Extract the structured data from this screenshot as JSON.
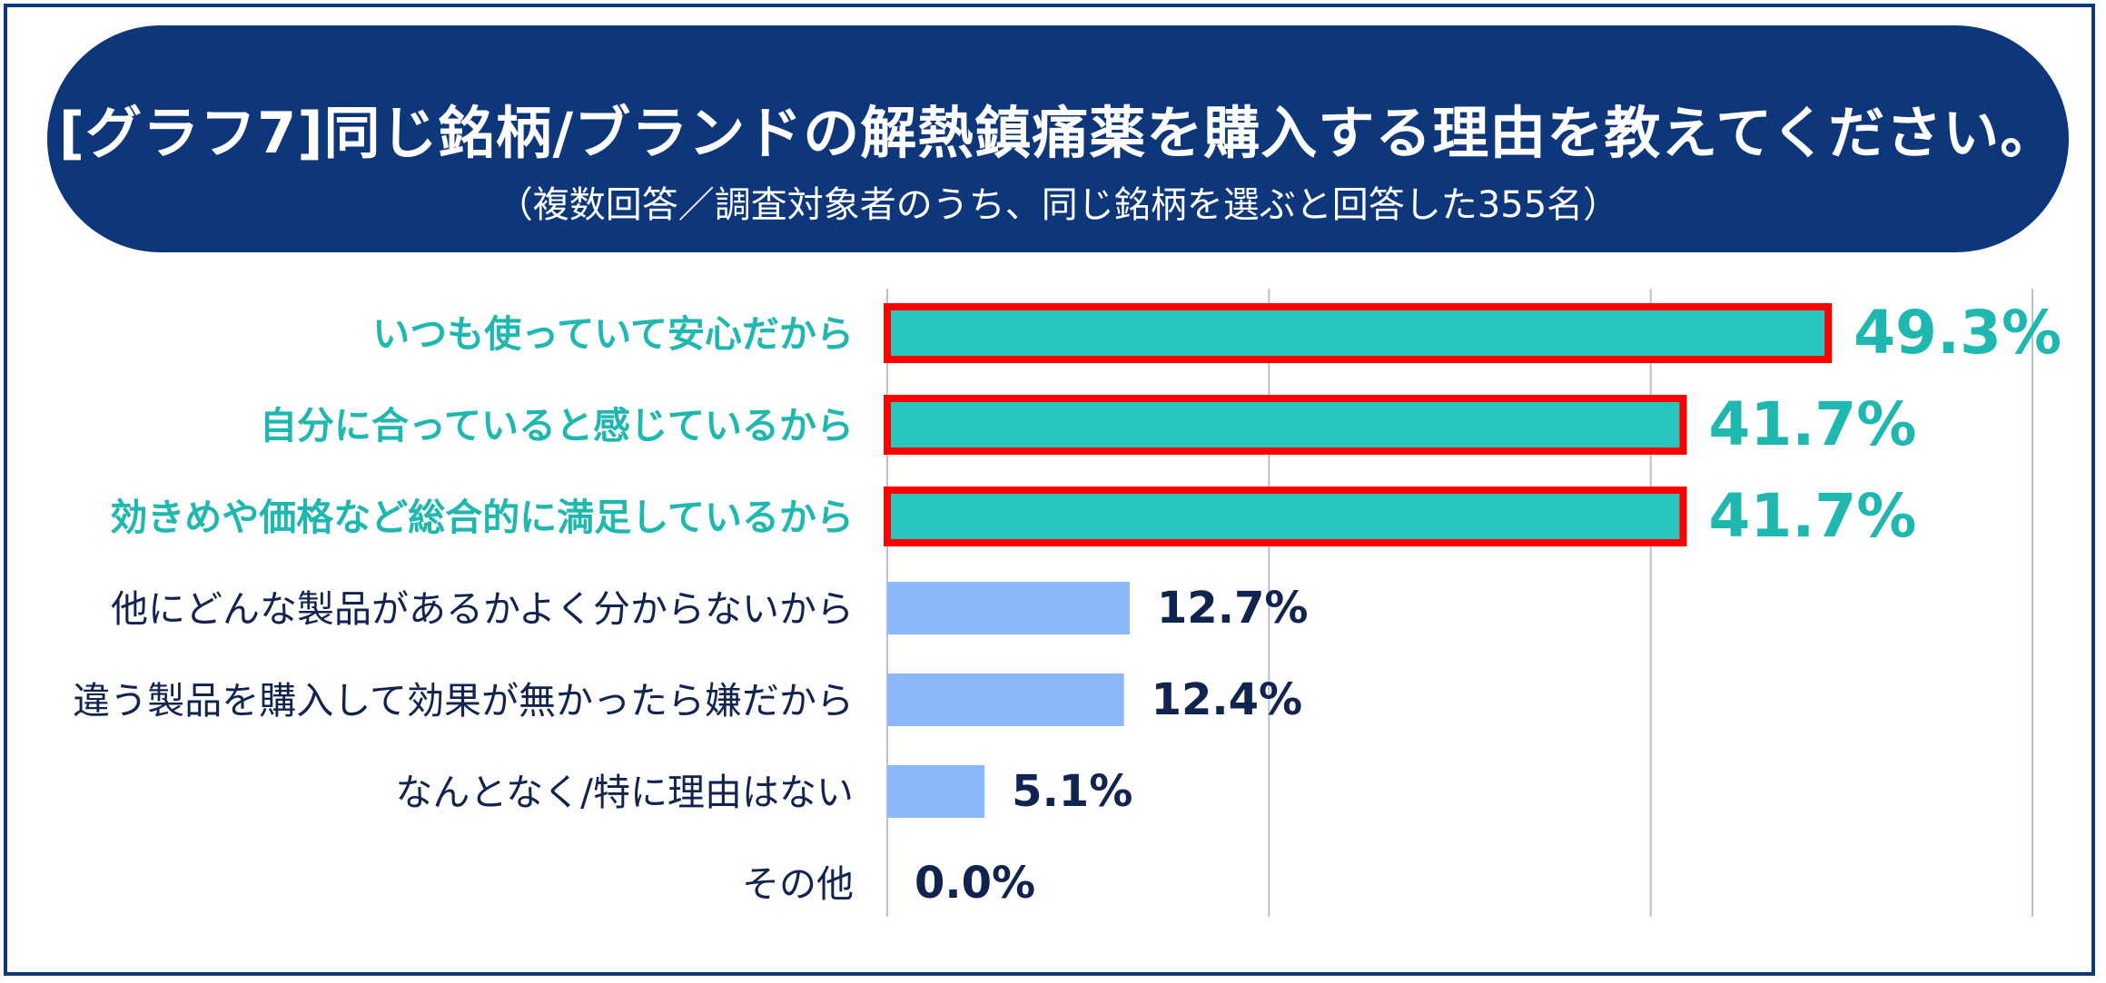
{
  "header": {
    "title": "[グラフ7]同じ銘柄/ブランドの解熱鎮痛薬を購入する理由を教えてください。",
    "subtitle": "（複数回答／調査対象者のうち、同じ銘柄を選ぶと回答した355名）"
  },
  "colors": {
    "header_bg": "#0e377b",
    "highlight_bar": "#26c6be",
    "highlight_border": "#ff0000",
    "highlight_text": "#1fb8b0",
    "normal_bar": "#8ab8f8",
    "normal_text": "#10244f",
    "gridline": "#b7c0d0"
  },
  "chart_data": {
    "type": "bar",
    "orientation": "horizontal",
    "categories": [
      "いつも使っていて安心だから",
      "自分に合っていると感じているから",
      "効きめや価格など総合的に満足しているから",
      "他にどんな製品があるかよく分からないから",
      "違う製品を購入して効果が無かったら嫌だから",
      "なんとなく/特に理由はない",
      "その他"
    ],
    "values": [
      49.3,
      41.7,
      41.7,
      12.7,
      12.4,
      5.1,
      0.0
    ],
    "value_labels": [
      "49.3%",
      "41.7%",
      "41.7%",
      "12.7%",
      "12.4%",
      "5.1%",
      "0.0%"
    ],
    "highlighted": [
      true,
      true,
      true,
      false,
      false,
      false,
      false
    ],
    "xlim": [
      0,
      60
    ],
    "grid": true
  }
}
